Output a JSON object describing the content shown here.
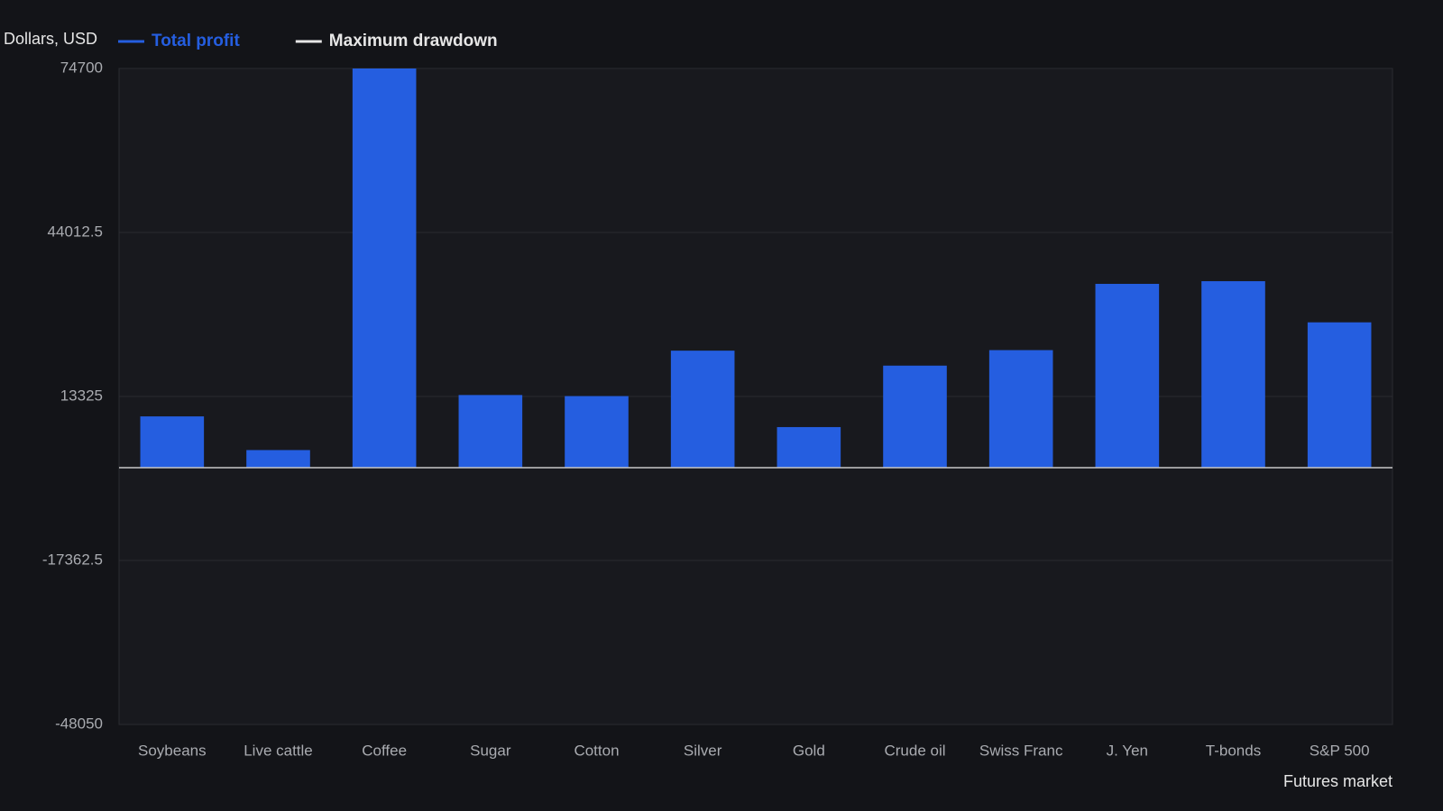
{
  "chart_data": {
    "type": "bar",
    "y_label": "Dollars, USD",
    "x_label": "Futures market",
    "categories": [
      "Soybeans",
      "Live cattle",
      "Coffee",
      "Sugar",
      "Cotton",
      "Silver",
      "Gold",
      "Crude oil",
      "Swiss Franc",
      "J. Yen",
      "T-bonds",
      "S&P 500"
    ],
    "series": [
      {
        "name": "Total profit",
        "color": "#255ee0",
        "values": [
          9600,
          3300,
          74700,
          13600,
          13400,
          21900,
          7600,
          19100,
          22000,
          34400,
          34900,
          27200
        ]
      },
      {
        "name": "Maximum drawdown",
        "color": "#e6e6e6",
        "hidden": true,
        "values": [
          null,
          null,
          null,
          null,
          null,
          null,
          null,
          null,
          null,
          null,
          null,
          null
        ]
      }
    ],
    "ylim": [
      -48050,
      74700
    ],
    "yticks": [
      -48050,
      -17362.5,
      13325,
      44012.5,
      74700
    ],
    "grid": true
  }
}
